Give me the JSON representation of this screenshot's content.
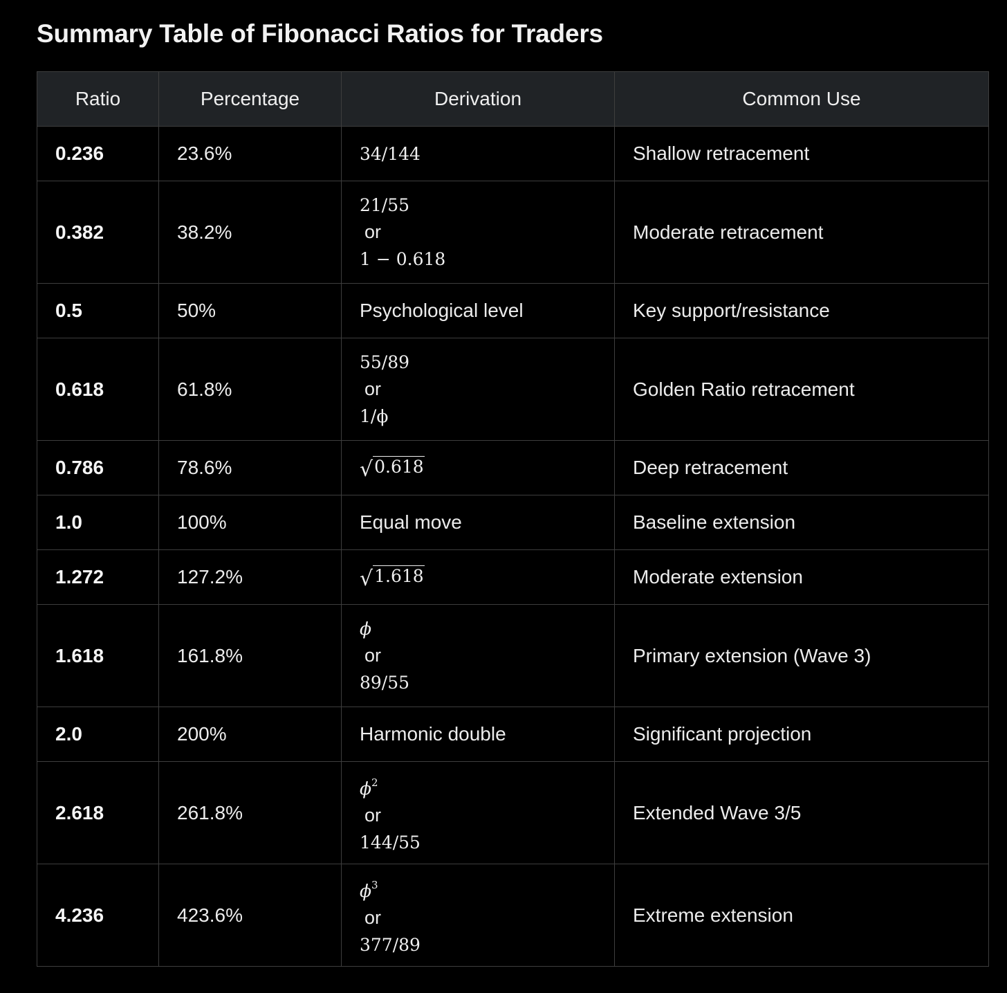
{
  "title": "Summary Table of Fibonacci Ratios for Traders",
  "columns": [
    "Ratio",
    "Percentage",
    "Derivation",
    "Common Use"
  ],
  "rows": [
    {
      "ratio": "0.236",
      "percentage": "23.6%",
      "derivation": [
        "34/144"
      ],
      "use": "Shallow retracement"
    },
    {
      "ratio": "0.382",
      "percentage": "38.2%",
      "derivation": [
        "21/55",
        "or",
        "1 − 0.618"
      ],
      "use": "Moderate retracement"
    },
    {
      "ratio": "0.5",
      "percentage": "50%",
      "derivation": [
        "Psychological level"
      ],
      "use": "Key support/resistance"
    },
    {
      "ratio": "0.618",
      "percentage": "61.8%",
      "derivation": [
        "55/89",
        "or",
        "1/ϕ"
      ],
      "use": "Golden Ratio retracement"
    },
    {
      "ratio": "0.786",
      "percentage": "78.6%",
      "derivation": [
        "√0.618"
      ],
      "use": "Deep retracement"
    },
    {
      "ratio": "1.0",
      "percentage": "100%",
      "derivation": [
        "Equal move"
      ],
      "use": "Baseline extension"
    },
    {
      "ratio": "1.272",
      "percentage": "127.2%",
      "derivation": [
        "√1.618"
      ],
      "use": "Moderate extension"
    },
    {
      "ratio": "1.618",
      "percentage": "161.8%",
      "derivation": [
        "ϕ",
        "or",
        "89/55"
      ],
      "use": "Primary extension (Wave 3)"
    },
    {
      "ratio": "2.0",
      "percentage": "200%",
      "derivation": [
        "Harmonic double"
      ],
      "use": "Significant projection"
    },
    {
      "ratio": "2.618",
      "percentage": "261.8%",
      "derivation": [
        "ϕ²",
        "or",
        "144/55"
      ],
      "use": "Extended Wave 3/5"
    },
    {
      "ratio": "4.236",
      "percentage": "423.6%",
      "derivation": [
        "ϕ³",
        "or",
        "377/89"
      ],
      "use": "Extreme extension"
    }
  ]
}
